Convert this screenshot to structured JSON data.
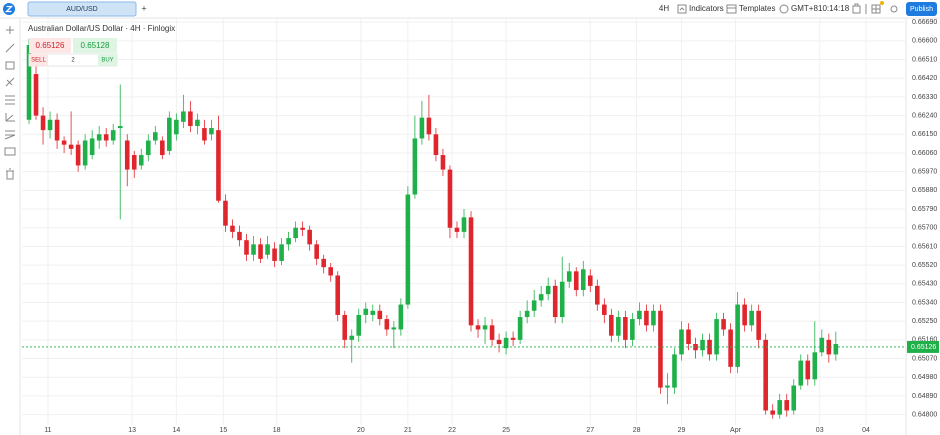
{
  "header": {
    "symbol": "AUD/USD",
    "add": "+",
    "interval": "4H",
    "indicators": "Indicators",
    "templates": "Templates",
    "timezone": "GMT+8",
    "clock": "10:14:18",
    "publish": "Publish"
  },
  "order": {
    "sell_price": 0.65126,
    "buy_price": 0.65128,
    "sell": "SELL",
    "buy": "BUY",
    "quantity": "2"
  },
  "chart_data": {
    "type": "candlestick",
    "title": "Australian Dollar/US Dollar · 4H · Finlogix",
    "up_color": "#1fb04a",
    "down_color": "#e0262d",
    "grid": true,
    "last_price": 0.65126,
    "ylim": [
      0.6475,
      0.6671
    ],
    "yticks": [
      {
        "value": 0.6669,
        "label": "0.66690"
      },
      {
        "value": 0.666,
        "label": "0.66600"
      },
      {
        "value": 0.6651,
        "label": "0.66510"
      },
      {
        "value": 0.6642,
        "label": "0.66420"
      },
      {
        "value": 0.6633,
        "label": "0.66330"
      },
      {
        "value": 0.6624,
        "label": "0.66240"
      },
      {
        "value": 0.6615,
        "label": "0.66150"
      },
      {
        "value": 0.6606,
        "label": "0.66060"
      },
      {
        "value": 0.6597,
        "label": "0.65970"
      },
      {
        "value": 0.6588,
        "label": "0.65880"
      },
      {
        "value": 0.6579,
        "label": "0.65790"
      },
      {
        "value": 0.657,
        "label": "0.65700"
      },
      {
        "value": 0.6561,
        "label": "0.65610"
      },
      {
        "value": 0.6552,
        "label": "0.65520"
      },
      {
        "value": 0.6543,
        "label": "0.65430"
      },
      {
        "value": 0.6534,
        "label": "0.65340"
      },
      {
        "value": 0.6525,
        "label": "0.65250"
      },
      {
        "value": 0.6516,
        "label": "0.65160"
      },
      {
        "value": 0.6507,
        "label": "0.65070"
      },
      {
        "value": 0.6498,
        "label": "0.64980"
      },
      {
        "value": 0.6489,
        "label": "0.64890"
      },
      {
        "value": 0.648,
        "label": "0.64800"
      }
    ],
    "xlim": [
      -1,
      125
    ],
    "xticks": [
      {
        "value": 2.7,
        "label": "11"
      },
      {
        "value": 14.7,
        "label": "13"
      },
      {
        "value": 21,
        "label": "14"
      },
      {
        "value": 27.7,
        "label": "15"
      },
      {
        "value": 35.3,
        "label": "18"
      },
      {
        "value": 47.3,
        "label": "20"
      },
      {
        "value": 54,
        "label": "21"
      },
      {
        "value": 60.3,
        "label": "22"
      },
      {
        "value": 68,
        "label": "25"
      },
      {
        "value": 80,
        "label": "27"
      },
      {
        "value": 86.6,
        "label": "28"
      },
      {
        "value": 93,
        "label": "29"
      },
      {
        "value": 100.7,
        "label": "Apr"
      },
      {
        "value": 112.7,
        "label": "03"
      },
      {
        "value": 119.3,
        "label": "04"
      }
    ],
    "candles": [
      {
        "open": 0.6622,
        "high": 0.6661,
        "low": 0.662,
        "close": 0.6658
      },
      {
        "open": 0.6644,
        "high": 0.6651,
        "low": 0.6622,
        "close": 0.6624
      },
      {
        "open": 0.6624,
        "high": 0.6628,
        "low": 0.661,
        "close": 0.6617
      },
      {
        "open": 0.6617,
        "high": 0.6626,
        "low": 0.6613,
        "close": 0.6622
      },
      {
        "open": 0.6622,
        "high": 0.6625,
        "low": 0.6608,
        "close": 0.6612
      },
      {
        "open": 0.6612,
        "high": 0.6614,
        "low": 0.6606,
        "close": 0.661
      },
      {
        "open": 0.661,
        "high": 0.6626,
        "low": 0.6605,
        "close": 0.6608
      },
      {
        "open": 0.661,
        "high": 0.6612,
        "low": 0.6597,
        "close": 0.66
      },
      {
        "open": 0.66,
        "high": 0.6615,
        "low": 0.6598,
        "close": 0.6612
      },
      {
        "open": 0.6605,
        "high": 0.6617,
        "low": 0.6603,
        "close": 0.6613
      },
      {
        "open": 0.6612,
        "high": 0.6619,
        "low": 0.6608,
        "close": 0.6615
      },
      {
        "open": 0.6615,
        "high": 0.6618,
        "low": 0.6609,
        "close": 0.6612
      },
      {
        "open": 0.6612,
        "high": 0.662,
        "low": 0.661,
        "close": 0.6617
      },
      {
        "open": 0.6618,
        "high": 0.6639,
        "low": 0.6574,
        "close": 0.6619
      },
      {
        "open": 0.6612,
        "high": 0.6615,
        "low": 0.659,
        "close": 0.6598
      },
      {
        "open": 0.6605,
        "high": 0.6607,
        "low": 0.6594,
        "close": 0.6598
      },
      {
        "open": 0.66,
        "high": 0.6608,
        "low": 0.6598,
        "close": 0.6605
      },
      {
        "open": 0.6605,
        "high": 0.6615,
        "low": 0.6602,
        "close": 0.6612
      },
      {
        "open": 0.6612,
        "high": 0.6619,
        "low": 0.661,
        "close": 0.6616
      },
      {
        "open": 0.6612,
        "high": 0.6614,
        "low": 0.6603,
        "close": 0.6605
      },
      {
        "open": 0.6607,
        "high": 0.6626,
        "low": 0.6605,
        "close": 0.6623
      },
      {
        "open": 0.6615,
        "high": 0.6625,
        "low": 0.6612,
        "close": 0.6622
      },
      {
        "open": 0.6621,
        "high": 0.6634,
        "low": 0.6618,
        "close": 0.6626
      },
      {
        "open": 0.6626,
        "high": 0.6631,
        "low": 0.6616,
        "close": 0.6619
      },
      {
        "open": 0.6619,
        "high": 0.6625,
        "low": 0.6615,
        "close": 0.6622
      },
      {
        "open": 0.6618,
        "high": 0.6622,
        "low": 0.661,
        "close": 0.6612
      },
      {
        "open": 0.6615,
        "high": 0.6622,
        "low": 0.6612,
        "close": 0.6618
      },
      {
        "open": 0.6617,
        "high": 0.6624,
        "low": 0.6582,
        "close": 0.6583
      },
      {
        "open": 0.6583,
        "high": 0.6586,
        "low": 0.6568,
        "close": 0.6571
      },
      {
        "open": 0.6571,
        "high": 0.6574,
        "low": 0.6565,
        "close": 0.6568
      },
      {
        "open": 0.6568,
        "high": 0.6571,
        "low": 0.6561,
        "close": 0.6564
      },
      {
        "open": 0.6564,
        "high": 0.6567,
        "low": 0.6554,
        "close": 0.6557
      },
      {
        "open": 0.6557,
        "high": 0.6566,
        "low": 0.6554,
        "close": 0.6562
      },
      {
        "open": 0.6562,
        "high": 0.6565,
        "low": 0.6553,
        "close": 0.6555
      },
      {
        "open": 0.6557,
        "high": 0.6566,
        "low": 0.6555,
        "close": 0.6562
      },
      {
        "open": 0.656,
        "high": 0.6563,
        "low": 0.6551,
        "close": 0.6554
      },
      {
        "open": 0.6554,
        "high": 0.6565,
        "low": 0.6552,
        "close": 0.6562
      },
      {
        "open": 0.6562,
        "high": 0.6568,
        "low": 0.6559,
        "close": 0.6565
      },
      {
        "open": 0.6565,
        "high": 0.6573,
        "low": 0.6563,
        "close": 0.657
      },
      {
        "open": 0.657,
        "high": 0.6573,
        "low": 0.6566,
        "close": 0.6569
      },
      {
        "open": 0.6569,
        "high": 0.6571,
        "low": 0.6559,
        "close": 0.6562
      },
      {
        "open": 0.6562,
        "high": 0.6564,
        "low": 0.6552,
        "close": 0.6555
      },
      {
        "open": 0.6555,
        "high": 0.6557,
        "low": 0.6548,
        "close": 0.6551
      },
      {
        "open": 0.6551,
        "high": 0.6553,
        "low": 0.6544,
        "close": 0.6547
      },
      {
        "open": 0.6547,
        "high": 0.6549,
        "low": 0.6525,
        "close": 0.6528
      },
      {
        "open": 0.6528,
        "high": 0.653,
        "low": 0.6512,
        "close": 0.6516
      },
      {
        "open": 0.6516,
        "high": 0.6521,
        "low": 0.6505,
        "close": 0.6518
      },
      {
        "open": 0.6518,
        "high": 0.6531,
        "low": 0.6515,
        "close": 0.6528
      },
      {
        "open": 0.6528,
        "high": 0.6534,
        "low": 0.6524,
        "close": 0.6531
      },
      {
        "open": 0.6528,
        "high": 0.6533,
        "low": 0.6525,
        "close": 0.653
      },
      {
        "open": 0.653,
        "high": 0.6533,
        "low": 0.6523,
        "close": 0.6526
      },
      {
        "open": 0.6526,
        "high": 0.6528,
        "low": 0.6518,
        "close": 0.6521
      },
      {
        "open": 0.6521,
        "high": 0.6525,
        "low": 0.6512,
        "close": 0.6522
      },
      {
        "open": 0.6521,
        "high": 0.6536,
        "low": 0.6518,
        "close": 0.6533
      },
      {
        "open": 0.6533,
        "high": 0.659,
        "low": 0.6531,
        "close": 0.6586
      },
      {
        "open": 0.6586,
        "high": 0.6624,
        "low": 0.6584,
        "close": 0.6613
      },
      {
        "open": 0.6613,
        "high": 0.6631,
        "low": 0.661,
        "close": 0.6623
      },
      {
        "open": 0.6623,
        "high": 0.6634,
        "low": 0.6612,
        "close": 0.6615
      },
      {
        "open": 0.6615,
        "high": 0.6618,
        "low": 0.6602,
        "close": 0.6605
      },
      {
        "open": 0.6605,
        "high": 0.6608,
        "low": 0.6595,
        "close": 0.6598
      },
      {
        "open": 0.6598,
        "high": 0.66,
        "low": 0.6565,
        "close": 0.657
      },
      {
        "open": 0.657,
        "high": 0.6573,
        "low": 0.6565,
        "close": 0.6568
      },
      {
        "open": 0.6568,
        "high": 0.6579,
        "low": 0.6565,
        "close": 0.6575
      },
      {
        "open": 0.6575,
        "high": 0.6578,
        "low": 0.652,
        "close": 0.6523
      },
      {
        "open": 0.6523,
        "high": 0.6526,
        "low": 0.6517,
        "close": 0.6521
      },
      {
        "open": 0.6521,
        "high": 0.6527,
        "low": 0.6514,
        "close": 0.6523
      },
      {
        "open": 0.6523,
        "high": 0.6526,
        "low": 0.6513,
        "close": 0.6516
      },
      {
        "open": 0.6516,
        "high": 0.6519,
        "low": 0.651,
        "close": 0.6514
      },
      {
        "open": 0.6512,
        "high": 0.652,
        "low": 0.6509,
        "close": 0.6517
      },
      {
        "open": 0.6517,
        "high": 0.652,
        "low": 0.6513,
        "close": 0.6516
      },
      {
        "open": 0.6516,
        "high": 0.653,
        "low": 0.6514,
        "close": 0.6527
      },
      {
        "open": 0.6527,
        "high": 0.6535,
        "low": 0.6524,
        "close": 0.653
      },
      {
        "open": 0.653,
        "high": 0.654,
        "low": 0.6527,
        "close": 0.6535
      },
      {
        "open": 0.6535,
        "high": 0.6542,
        "low": 0.6532,
        "close": 0.6538
      },
      {
        "open": 0.6538,
        "high": 0.6546,
        "low": 0.6535,
        "close": 0.6542
      },
      {
        "open": 0.6542,
        "high": 0.6545,
        "low": 0.6524,
        "close": 0.6527
      },
      {
        "open": 0.6527,
        "high": 0.6556,
        "low": 0.6524,
        "close": 0.6544
      },
      {
        "open": 0.6544,
        "high": 0.6553,
        "low": 0.6541,
        "close": 0.6549
      },
      {
        "open": 0.6549,
        "high": 0.6551,
        "low": 0.6537,
        "close": 0.654
      },
      {
        "open": 0.654,
        "high": 0.6554,
        "low": 0.6537,
        "close": 0.655
      },
      {
        "open": 0.6547,
        "high": 0.655,
        "low": 0.6539,
        "close": 0.6542
      },
      {
        "open": 0.6542,
        "high": 0.6545,
        "low": 0.653,
        "close": 0.6533
      },
      {
        "open": 0.6533,
        "high": 0.6536,
        "low": 0.6524,
        "close": 0.6528
      },
      {
        "open": 0.6528,
        "high": 0.6531,
        "low": 0.6515,
        "close": 0.6518
      },
      {
        "open": 0.6518,
        "high": 0.653,
        "low": 0.6515,
        "close": 0.6527
      },
      {
        "open": 0.6527,
        "high": 0.653,
        "low": 0.6512,
        "close": 0.6516
      },
      {
        "open": 0.6516,
        "high": 0.6529,
        "low": 0.6513,
        "close": 0.6526
      },
      {
        "open": 0.6526,
        "high": 0.6534,
        "low": 0.6523,
        "close": 0.653
      },
      {
        "open": 0.653,
        "high": 0.6533,
        "low": 0.652,
        "close": 0.6523
      },
      {
        "open": 0.6523,
        "high": 0.6533,
        "low": 0.652,
        "close": 0.653
      },
      {
        "open": 0.653,
        "high": 0.6533,
        "low": 0.649,
        "close": 0.6493
      },
      {
        "open": 0.6493,
        "high": 0.65,
        "low": 0.6485,
        "close": 0.6494
      },
      {
        "open": 0.6493,
        "high": 0.6512,
        "low": 0.649,
        "close": 0.6509
      },
      {
        "open": 0.6509,
        "high": 0.6525,
        "low": 0.6506,
        "close": 0.6521
      },
      {
        "open": 0.6521,
        "high": 0.6524,
        "low": 0.6511,
        "close": 0.6514
      },
      {
        "open": 0.6514,
        "high": 0.6517,
        "low": 0.6507,
        "close": 0.6511
      },
      {
        "open": 0.6511,
        "high": 0.6519,
        "low": 0.6508,
        "close": 0.6516
      },
      {
        "open": 0.6516,
        "high": 0.6519,
        "low": 0.6506,
        "close": 0.6509
      },
      {
        "open": 0.6509,
        "high": 0.6529,
        "low": 0.6506,
        "close": 0.6526
      },
      {
        "open": 0.6526,
        "high": 0.6529,
        "low": 0.6518,
        "close": 0.6521
      },
      {
        "open": 0.6521,
        "high": 0.6524,
        "low": 0.65,
        "close": 0.6503
      },
      {
        "open": 0.6503,
        "high": 0.6539,
        "low": 0.65,
        "close": 0.6533
      },
      {
        "open": 0.6533,
        "high": 0.6536,
        "low": 0.652,
        "close": 0.6523
      },
      {
        "open": 0.6523,
        "high": 0.6533,
        "low": 0.652,
        "close": 0.653
      },
      {
        "open": 0.653,
        "high": 0.6533,
        "low": 0.6512,
        "close": 0.6516
      },
      {
        "open": 0.6516,
        "high": 0.6519,
        "low": 0.648,
        "close": 0.6482
      },
      {
        "open": 0.6482,
        "high": 0.6485,
        "low": 0.6478,
        "close": 0.648
      },
      {
        "open": 0.648,
        "high": 0.649,
        "low": 0.6478,
        "close": 0.6487
      },
      {
        "open": 0.6487,
        "high": 0.649,
        "low": 0.6479,
        "close": 0.6482
      },
      {
        "open": 0.6482,
        "high": 0.6497,
        "low": 0.648,
        "close": 0.6494
      },
      {
        "open": 0.6494,
        "high": 0.6509,
        "low": 0.6492,
        "close": 0.6506
      },
      {
        "open": 0.6506,
        "high": 0.6509,
        "low": 0.6494,
        "close": 0.6497
      },
      {
        "open": 0.6497,
        "high": 0.6525,
        "low": 0.6494,
        "close": 0.651
      },
      {
        "open": 0.651,
        "high": 0.6521,
        "low": 0.6508,
        "close": 0.6517
      },
      {
        "open": 0.6516,
        "high": 0.6519,
        "low": 0.6505,
        "close": 0.6509
      },
      {
        "open": 0.6509,
        "high": 0.652,
        "low": 0.6506,
        "close": 0.6514
      }
    ]
  }
}
